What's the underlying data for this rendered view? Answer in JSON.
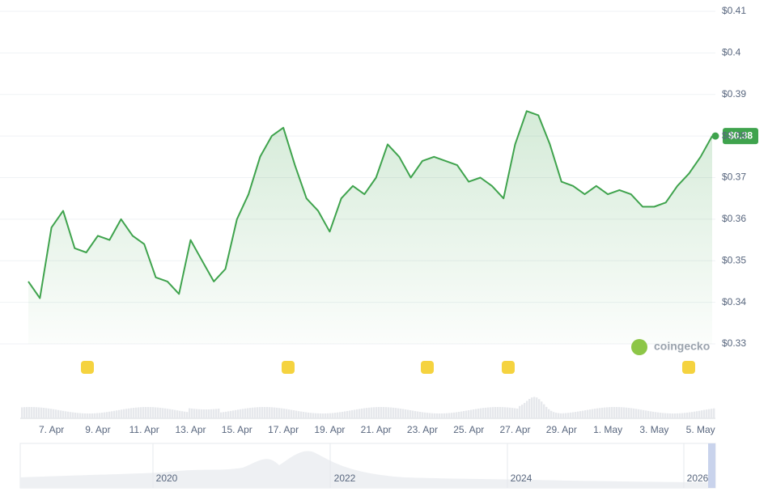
{
  "chart_data": {
    "type": "line",
    "categories": [
      null,
      null,
      "7. Apr",
      null,
      null,
      null,
      "9. Apr",
      null,
      null,
      null,
      "11. Apr",
      null,
      null,
      null,
      "13. Apr",
      null,
      null,
      null,
      "15. Apr",
      null,
      null,
      null,
      "17. Apr",
      null,
      null,
      null,
      "19. Apr",
      null,
      null,
      null,
      "21. Apr",
      null,
      null,
      null,
      "23. Apr",
      null,
      null,
      null,
      "25. Apr",
      null,
      null,
      null,
      "27. Apr",
      null,
      null,
      null,
      "29. Apr",
      null,
      null,
      null,
      "1. May",
      null,
      null,
      null,
      "3. May",
      null,
      null,
      null,
      "5. May",
      null
    ],
    "series": [
      {
        "color": "#3fa34d",
        "values": [
          0.345,
          0.341,
          0.358,
          0.362,
          0.353,
          0.352,
          0.356,
          0.355,
          0.36,
          0.356,
          0.354,
          0.346,
          0.345,
          0.342,
          0.355,
          0.35,
          0.345,
          0.348,
          0.36,
          0.366,
          0.375,
          0.38,
          0.382,
          0.373,
          0.365,
          0.362,
          0.357,
          0.365,
          0.368,
          0.366,
          0.37,
          0.378,
          0.375,
          0.37,
          0.374,
          0.375,
          0.374,
          0.373,
          0.369,
          0.37,
          0.368,
          0.365,
          0.378,
          0.386,
          0.385,
          0.378,
          0.369,
          0.368,
          0.366,
          0.368,
          0.366,
          0.367,
          0.366,
          0.363,
          0.363,
          0.364,
          0.368,
          0.371,
          0.375,
          0.38
        ]
      }
    ],
    "current_price_label": "$0.38",
    "ylim": [
      0.33,
      0.41
    ],
    "yticks": [
      {
        "value": 0.33,
        "label": "$0.33"
      },
      {
        "value": 0.34,
        "label": "$0.34"
      },
      {
        "value": 0.35,
        "label": "$0.35"
      },
      {
        "value": 0.36,
        "label": "$0.36"
      },
      {
        "value": 0.37,
        "label": "$0.37"
      },
      {
        "value": 0.38,
        "label": "$0.38"
      },
      {
        "value": 0.39,
        "label": "$0.39"
      },
      {
        "value": 0.4,
        "label": "$0.4"
      },
      {
        "value": 0.41,
        "label": "$0.41"
      }
    ],
    "grid": true,
    "watermark": "coingecko",
    "navigator_labels": [
      "2020",
      "2022",
      "2024",
      "2026"
    ]
  }
}
